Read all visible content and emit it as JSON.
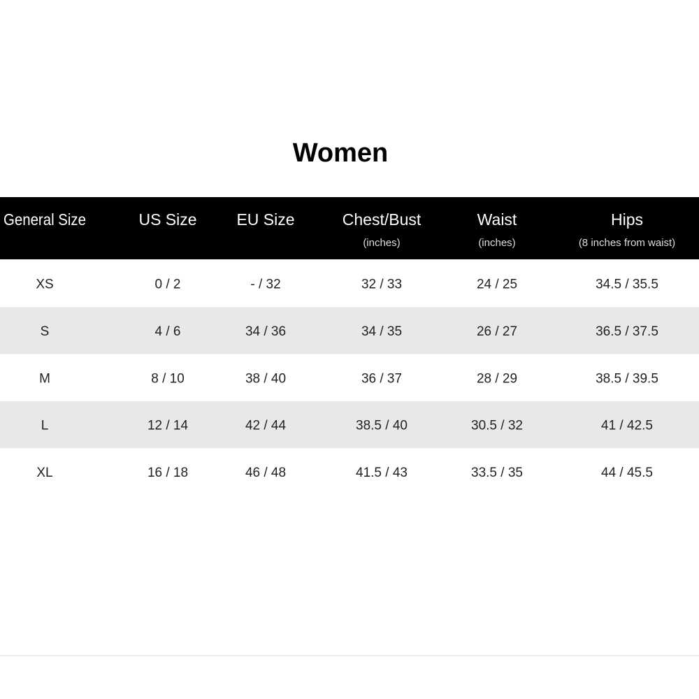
{
  "title": "Women",
  "table": {
    "header": [
      {
        "label": "General Size"
      },
      {
        "label": "US Size"
      },
      {
        "label": "EU Size"
      },
      {
        "label": "Chest/Bust",
        "note": "(inches)"
      },
      {
        "label": "Waist",
        "note": "(inches)"
      },
      {
        "label": "Hips",
        "note": "(8 inches from waist)"
      }
    ],
    "rows": [
      [
        "XS",
        "0 / 2",
        "- / 32",
        "32 / 33",
        "24 / 25",
        "34.5 / 35.5"
      ],
      [
        "S",
        "4 / 6",
        "34 / 36",
        "34 / 35",
        "26 / 27",
        "36.5 / 37.5"
      ],
      [
        "M",
        "8 / 10",
        "38 / 40",
        "36 / 37",
        "28 / 29",
        "38.5 / 39.5"
      ],
      [
        "L",
        "12 / 14",
        "42 / 44",
        "38.5 / 40",
        "30.5 / 32",
        "41 / 42.5"
      ],
      [
        "XL",
        "16 / 18",
        "46 / 48",
        "41.5 / 43",
        "33.5 / 35",
        "44 / 45.5"
      ]
    ]
  }
}
